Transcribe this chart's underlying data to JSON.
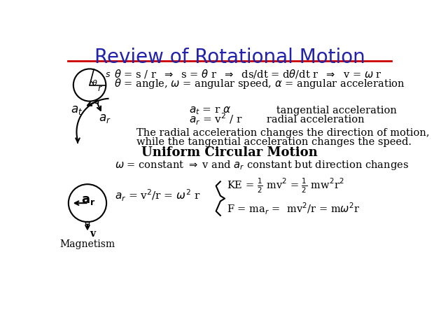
{
  "title": "Review of Rotational Motion",
  "title_color": "#2222aa",
  "title_fontsize": 20,
  "bg_color": "#ffffff",
  "line_color": "#cc0000",
  "text_color": "#000000",
  "magnetism_label": "Magnetism",
  "eq1": "$\\theta$ = s / r  $\\Rightarrow$  s = $\\theta$ r  $\\Rightarrow$  ds/dt = d$\\theta$/dt r  $\\Rightarrow$  v = $\\omega$ r",
  "eq2": "$\\theta$ = angle, $\\omega$ = angular speed, $\\alpha$ = angular acceleration",
  "at_eq": "$a_t$ = r $\\alpha$",
  "ar_eq": "$a_r$ = v$^2$ / r",
  "at_label": "tangential acceleration",
  "ar_label": "radial acceleration",
  "radial_text1": "The radial acceleration changes the direction of motion,",
  "radial_text2": "while the tangential acceleration changes the speed.",
  "ucm_title": "Uniform Circular Motion",
  "ucm_eq": "$\\omega$ = constant $\\Rightarrow$ v and $a_r$ constant but direction changes",
  "ar_eq2": "$a_r$ = v$^2$/r = $\\omega^2$ r",
  "ke_eq": "KE = ½ mv² = ½ mw²r²",
  "f_eq": "F = ma$_r$ =  mv²/r = m$\\omega^2$r"
}
